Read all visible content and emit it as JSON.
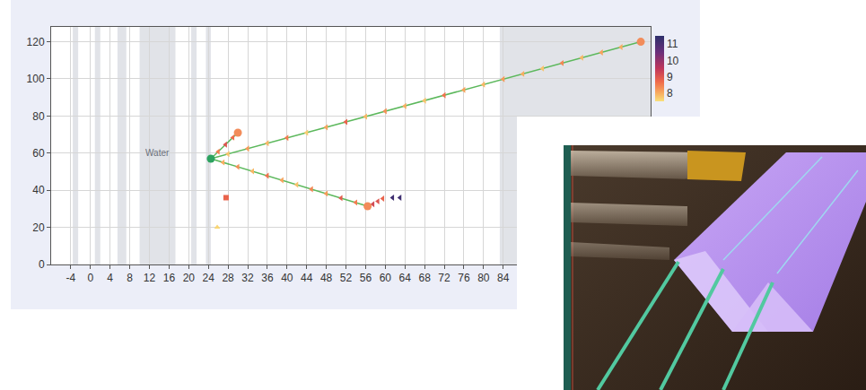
{
  "chart_data": {
    "type": "scatter",
    "xlim": [
      -8,
      114
    ],
    "ylim": [
      0,
      128
    ],
    "xticks": [
      -4,
      0,
      4,
      8,
      12,
      16,
      20,
      24,
      28,
      32,
      36,
      40,
      44,
      48,
      52,
      56,
      60,
      64,
      68,
      72,
      76,
      80,
      84
    ],
    "yticks": [
      0,
      20,
      40,
      60,
      80,
      100,
      120
    ],
    "grid": true,
    "regions": [
      {
        "x0": -3.6,
        "x1": -2.5
      },
      {
        "x0": 0.9,
        "x1": 2.0
      },
      {
        "x0": 5.5,
        "x1": 7.3
      },
      {
        "x0": 10,
        "x1": 17.3,
        "label": "Water"
      },
      {
        "x0": 20.5,
        "x1": 21.6
      },
      {
        "x0": 23.5,
        "x1": 24.5
      },
      {
        "x0": 83.3,
        "x1": 114
      }
    ],
    "colorbar": {
      "range": [
        7.5,
        11.5
      ],
      "ticks": [
        8,
        9,
        10,
        11
      ]
    },
    "series": [
      {
        "type": "line",
        "color": "#5cb85c",
        "x": [
          24.5,
          112
        ],
        "y": [
          57,
          120
        ]
      },
      {
        "type": "line",
        "color": "#5cb85c",
        "x": [
          24.5,
          56.4
        ],
        "y": [
          57,
          31.4
        ]
      },
      {
        "type": "line",
        "color": "#5cb85c",
        "x": [
          24.5,
          30
        ],
        "y": [
          57,
          71
        ]
      },
      {
        "type": "scatter",
        "marker": "triangle-left",
        "x": [
          28,
          32,
          36,
          40,
          44,
          48,
          52,
          56,
          60,
          64,
          68,
          72,
          76,
          80,
          84,
          88,
          92,
          96,
          100,
          104,
          108,
          27,
          30,
          33,
          36,
          39,
          42,
          45,
          48,
          51,
          54,
          26,
          27.5,
          29,
          57.5,
          58.5,
          59.5,
          61.5,
          63
        ],
        "y": [
          59.5,
          62.4,
          65.3,
          68.2,
          71.0,
          73.9,
          76.8,
          79.7,
          82.6,
          85.4,
          88.3,
          91.2,
          94.1,
          97.0,
          99.9,
          102.7,
          105.6,
          108.5,
          111.4,
          114.2,
          117.1,
          55.0,
          52.6,
          50.2,
          47.8,
          45.4,
          43.0,
          40.6,
          38.2,
          35.8,
          33.4,
          60.8,
          64.6,
          68.4,
          32.5,
          34,
          35.5,
          36,
          36
        ],
        "levels": [
          7.8,
          8.2,
          7.9,
          8.5,
          7.7,
          8.1,
          8.8,
          7.9,
          8.3,
          8.0,
          7.8,
          8.6,
          8.1,
          7.9,
          8.2,
          8.0,
          7.8,
          8.4,
          7.9,
          8.1,
          8.0,
          8.0,
          8.3,
          7.9,
          8.6,
          8.1,
          7.8,
          8.4,
          8.2,
          8.9,
          8.5,
          8.5,
          9.0,
          8.7,
          9.2,
          9.0,
          8.8,
          11.2,
          11.2
        ]
      },
      {
        "type": "scatter",
        "marker": "square",
        "x": [
          27.6
        ],
        "y": [
          36
        ],
        "levels": [
          8.8
        ]
      },
      {
        "type": "scatter",
        "marker": "triangle-up",
        "x": [
          25.8
        ],
        "y": [
          20
        ],
        "levels": [
          7.6
        ]
      },
      {
        "type": "scatter",
        "marker": "circle",
        "color": "#f28c5a",
        "x": [
          112,
          56.4,
          30
        ],
        "y": [
          120,
          31.4,
          71
        ]
      },
      {
        "type": "scatter",
        "marker": "circle",
        "color": "#2ca25f",
        "x": [
          24.5
        ],
        "y": [
          57
        ]
      }
    ]
  }
}
